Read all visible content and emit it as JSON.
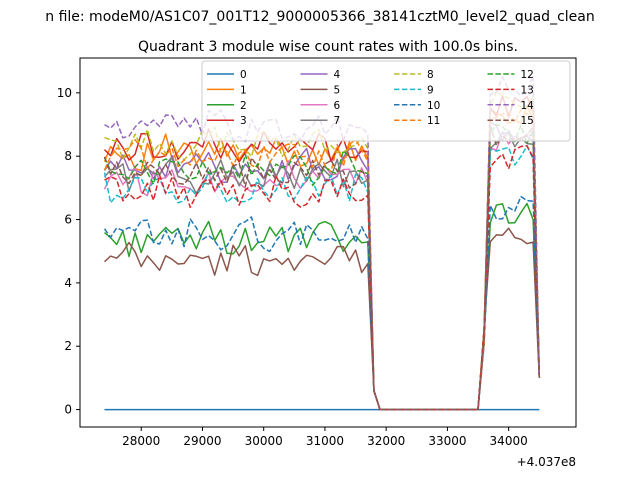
{
  "figure": {
    "suptitle": "n file: modeM0/AS1C07_001T12_9000005366_38141cztM0_level2_quad_clean",
    "title": "Quadrant 3 module wise count rates with 100.0s bins.",
    "x_offset_label": "+4.037e8"
  },
  "chart_data": {
    "type": "line",
    "title": "Quadrant 3 module wise count rates with 100.0s bins.",
    "xlabel": "",
    "ylabel": "",
    "x_offset": 403700000,
    "xlim": [
      27000,
      35100
    ],
    "ylim": [
      -0.55,
      11.1
    ],
    "xticks": [
      28000,
      29000,
      30000,
      31000,
      32000,
      33000,
      34000
    ],
    "xtick_labels": [
      "28000",
      "29000",
      "30000",
      "31000",
      "32000",
      "33000",
      "34000"
    ],
    "yticks": [
      0,
      2,
      4,
      6,
      8,
      10
    ],
    "ytick_labels": [
      "0",
      "2",
      "4",
      "6",
      "8",
      "10"
    ],
    "grid": false,
    "legend_position": "top-center",
    "legend_columns": 4,
    "time_span": [
      27400,
      34500
    ],
    "bin_width": 100,
    "segments": [
      {
        "from": 27400,
        "to": 31700,
        "state": "on"
      },
      {
        "from": 31800,
        "to": 31900,
        "state": "drop"
      },
      {
        "from": 31900,
        "to": 33500,
        "state": "off"
      },
      {
        "from": 33600,
        "to": 34400,
        "state": "on"
      },
      {
        "from": 34500,
        "to": 34500,
        "state": "drop"
      }
    ],
    "series": [
      {
        "name": "0",
        "color": "#1f77b4",
        "dashed": false,
        "level": 0.0
      },
      {
        "name": "1",
        "color": "#ff7f0e",
        "dashed": false,
        "level": 8.1
      },
      {
        "name": "2",
        "color": "#2ca02c",
        "dashed": false,
        "level": 5.4
      },
      {
        "name": "3",
        "color": "#d62728",
        "dashed": false,
        "level": 8.3
      },
      {
        "name": "4",
        "color": "#9467bd",
        "dashed": false,
        "level": 7.7
      },
      {
        "name": "5",
        "color": "#8c564b",
        "dashed": false,
        "level": 4.7
      },
      {
        "name": "6",
        "color": "#e377c2",
        "dashed": false,
        "level": 7.3
      },
      {
        "name": "7",
        "color": "#7f7f7f",
        "dashed": false,
        "level": 7.4
      },
      {
        "name": "8",
        "color": "#bcbd22",
        "dashed": true,
        "level": 8.4
      },
      {
        "name": "9",
        "color": "#17becf",
        "dashed": true,
        "level": 7.0
      },
      {
        "name": "10",
        "color": "#1f77b4",
        "dashed": true,
        "level": 5.5
      },
      {
        "name": "11",
        "color": "#ff7f0e",
        "dashed": true,
        "level": 8.0
      },
      {
        "name": "12",
        "color": "#2ca02c",
        "dashed": true,
        "level": 7.6
      },
      {
        "name": "13",
        "color": "#d62728",
        "dashed": true,
        "level": 6.9
      },
      {
        "name": "14",
        "color": "#9467bd",
        "dashed": true,
        "level": 8.9
      },
      {
        "name": "15",
        "color": "#8c564b",
        "dashed": true,
        "level": 7.5
      }
    ]
  }
}
